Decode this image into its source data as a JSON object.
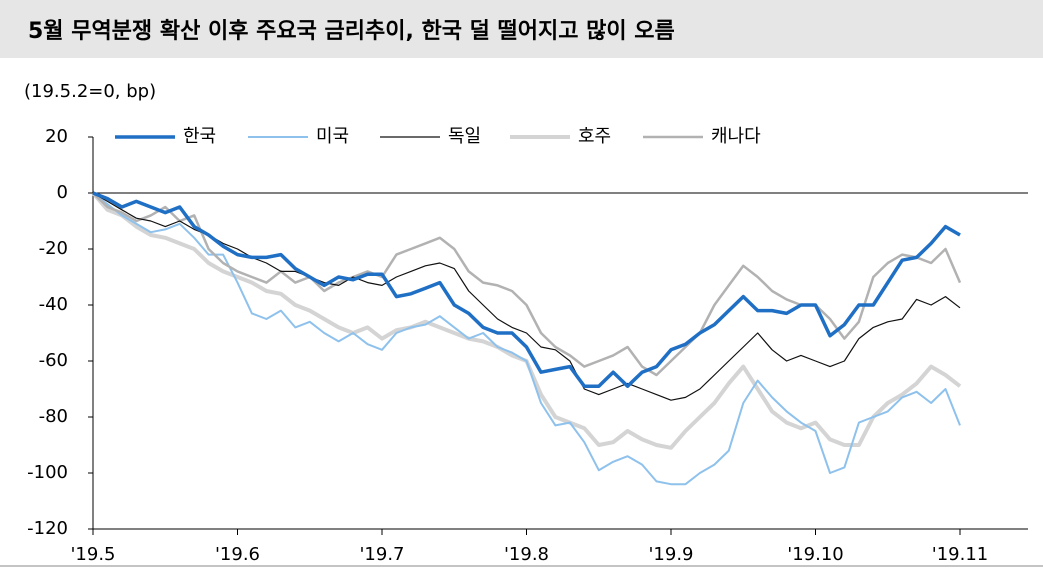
{
  "chart_data": {
    "type": "line",
    "title": "5월 무역분쟁 확산 이후 주요국 금리추이, 한국 덜 떨어지고 많이 오름",
    "subtitle": "(19.5.2=0, bp)",
    "categories": [
      "'19.5",
      null,
      null,
      null,
      null,
      null,
      null,
      null,
      null,
      null,
      "'19.6",
      null,
      null,
      null,
      null,
      null,
      null,
      null,
      null,
      null,
      "'19.7",
      null,
      null,
      null,
      null,
      null,
      null,
      null,
      null,
      null,
      "'19.8",
      null,
      null,
      null,
      null,
      null,
      null,
      null,
      null,
      null,
      "'19.9",
      null,
      null,
      null,
      null,
      null,
      null,
      null,
      null,
      null,
      "'19.10",
      null,
      null,
      null,
      null,
      null,
      null,
      null,
      null,
      null,
      "'19.11"
    ],
    "ylim": [
      -120,
      20
    ],
    "yticks": [
      -120,
      -100,
      -80,
      -60,
      -40,
      -20,
      0,
      20
    ],
    "series": [
      {
        "name": "호주",
        "color": "#d4d4d4",
        "width": 4,
        "values": [
          0,
          -6,
          -8,
          -12,
          -15,
          -16,
          -18,
          -20,
          -25,
          -28,
          -30,
          -32,
          -35,
          -36,
          -40,
          -42,
          -45,
          -48,
          -50,
          -48,
          -52,
          -49,
          -48,
          -46,
          -48,
          -50,
          -52,
          -53,
          -55,
          -58,
          -60,
          -72,
          -80,
          -82,
          -84,
          -90,
          -89,
          -85,
          -88,
          -90,
          -91,
          -85,
          -80,
          -75,
          -68,
          -62,
          -70,
          -78,
          -82,
          -84,
          -82,
          -88,
          -90,
          -90,
          -80,
          -75,
          -72,
          -68,
          -62,
          -65,
          -69
        ]
      },
      {
        "name": "미국",
        "color": "#8ec1ec",
        "width": 2,
        "values": [
          0,
          -4,
          -8,
          -11,
          -14,
          -13,
          -11,
          -16,
          -22,
          -22,
          -32,
          -43,
          -45,
          -42,
          -48,
          -46,
          -50,
          -53,
          -50,
          -54,
          -56,
          -50,
          -48,
          -47,
          -44,
          -48,
          -52,
          -50,
          -55,
          -57,
          -60,
          -75,
          -83,
          -82,
          -89,
          -99,
          -96,
          -94,
          -97,
          -103,
          -104,
          -104,
          -100,
          -97,
          -92,
          -75,
          -67,
          -73,
          -78,
          -82,
          -85,
          -100,
          -98,
          -82,
          -80,
          -78,
          -73,
          -71,
          -75,
          -70,
          -83
        ]
      },
      {
        "name": "캐나다",
        "color": "#b2b2b2",
        "width": 2.5,
        "values": [
          0,
          -5,
          -7,
          -10,
          -8,
          -5,
          -10,
          -8,
          -20,
          -25,
          -28,
          -30,
          -32,
          -28,
          -32,
          -30,
          -35,
          -32,
          -30,
          -28,
          -30,
          -22,
          -20,
          -18,
          -16,
          -20,
          -28,
          -32,
          -33,
          -35,
          -40,
          -50,
          -55,
          -58,
          -62,
          -60,
          -58,
          -55,
          -62,
          -65,
          -60,
          -55,
          -50,
          -40,
          -33,
          -26,
          -30,
          -35,
          -38,
          -40,
          -40,
          -45,
          -52,
          -46,
          -30,
          -25,
          -22,
          -23,
          -25,
          -20,
          -32
        ]
      },
      {
        "name": "독일",
        "color": "#111111",
        "width": 1.2,
        "values": [
          0,
          -3,
          -6,
          -9,
          -10,
          -12,
          -10,
          -13,
          -15,
          -18,
          -20,
          -23,
          -25,
          -28,
          -28,
          -30,
          -32,
          -33,
          -30,
          -32,
          -33,
          -30,
          -28,
          -26,
          -25,
          -27,
          -35,
          -40,
          -45,
          -48,
          -50,
          -55,
          -56,
          -60,
          -70,
          -72,
          -70,
          -68,
          -70,
          -72,
          -74,
          -73,
          -70,
          -65,
          -60,
          -55,
          -50,
          -56,
          -60,
          -58,
          -60,
          -62,
          -60,
          -52,
          -48,
          -46,
          -45,
          -38,
          -40,
          -37,
          -41
        ]
      },
      {
        "name": "한국",
        "color": "#1f6fc5",
        "width": 3.5,
        "values": [
          0,
          -2,
          -5,
          -3,
          -5,
          -7,
          -5,
          -12,
          -15,
          -19,
          -22,
          -23,
          -23,
          -22,
          -27,
          -30,
          -33,
          -30,
          -31,
          -29,
          -29,
          -37,
          -36,
          -34,
          -32,
          -40,
          -43,
          -48,
          -50,
          -50,
          -55,
          -64,
          -63,
          -62,
          -69,
          -69,
          -64,
          -69,
          -64,
          -62,
          -56,
          -54,
          -50,
          -47,
          -42,
          -37,
          -42,
          -42,
          -43,
          -40,
          -40,
          -51,
          -47,
          -40,
          -40,
          -32,
          -24,
          -23,
          -18,
          -12,
          -15
        ]
      }
    ],
    "legend_order": [
      "한국",
      "미국",
      "독일",
      "호주",
      "캐나다"
    ]
  }
}
